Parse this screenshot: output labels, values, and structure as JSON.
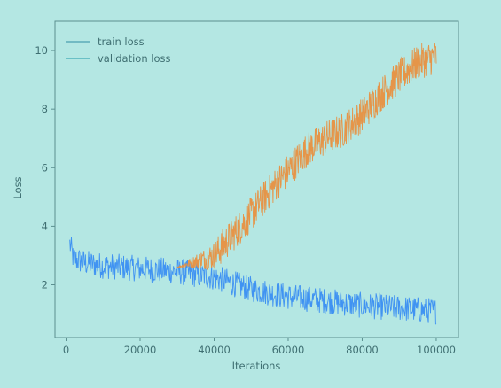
{
  "chart_data": {
    "type": "line",
    "title": "",
    "xlabel": "Iterations",
    "ylabel": "Loss",
    "xlim": [
      -3000,
      106000
    ],
    "ylim": [
      0.2,
      11.0
    ],
    "xticks": [
      0,
      20000,
      40000,
      60000,
      80000,
      100000
    ],
    "xtick_labels": [
      "0",
      "20000",
      "40000",
      "60000",
      "80000",
      "100000"
    ],
    "yticks": [
      2,
      4,
      6,
      8,
      10
    ],
    "ytick_labels": [
      "2",
      "4",
      "6",
      "8",
      "10"
    ],
    "legend": {
      "placement": "top-left"
    },
    "series": [
      {
        "name": "train loss",
        "color": "#3a8ef2",
        "noise": 0.45,
        "x": [
          1000,
          2000,
          5000,
          10000,
          20000,
          30000,
          40000,
          50000,
          60000,
          70000,
          80000,
          90000,
          100000
        ],
        "y": [
          3.4,
          2.9,
          2.75,
          2.65,
          2.55,
          2.45,
          2.25,
          1.85,
          1.6,
          1.45,
          1.3,
          1.2,
          1.1
        ]
      },
      {
        "name": "validation loss",
        "color": "#e89040",
        "noise": 0.6,
        "x": [
          30000,
          35000,
          40000,
          45000,
          50000,
          55000,
          60000,
          65000,
          70000,
          75000,
          80000,
          85000,
          90000,
          95000,
          100000
        ],
        "y": [
          2.6,
          2.8,
          3.0,
          3.7,
          4.4,
          5.2,
          5.9,
          6.6,
          7.0,
          7.3,
          7.8,
          8.5,
          9.1,
          9.6,
          9.8
        ]
      }
    ]
  }
}
